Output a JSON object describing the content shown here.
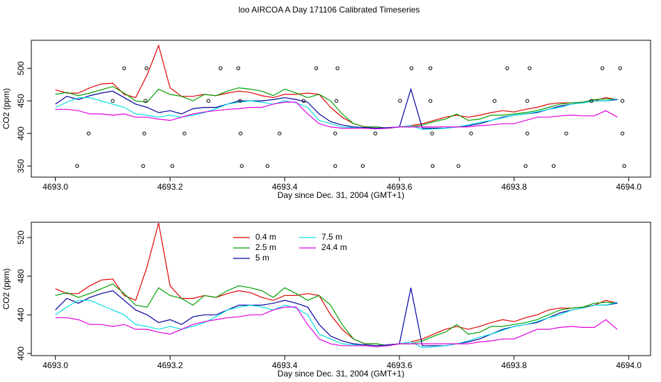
{
  "title": "loo AIRCOA A  Day 171106  Calibrated Timeseries",
  "chart_data": [
    {
      "type": "line",
      "xlabel": "Day since Dec. 31, 2004 (GMT+1)",
      "ylabel": "CO2 (ppm)",
      "xlim": [
        4692.958,
        4694.038
      ],
      "ylim": [
        333,
        543
      ],
      "xticks": [
        {
          "value": 4693.0,
          "label": "4693.0"
        },
        {
          "value": 4693.2,
          "label": "4693.2"
        },
        {
          "value": 4693.4,
          "label": "4693.4"
        },
        {
          "value": 4693.6,
          "label": "4693.6"
        },
        {
          "value": 4693.8,
          "label": "4693.8"
        },
        {
          "value": 4694.0,
          "label": "4694.0"
        }
      ],
      "yticks": [
        350,
        400,
        450,
        500
      ],
      "x": [
        4693.0,
        4693.02,
        4693.04,
        4693.06,
        4693.08,
        4693.1,
        4693.12,
        4693.14,
        4693.16,
        4693.18,
        4693.2,
        4693.22,
        4693.24,
        4693.26,
        4693.28,
        4693.3,
        4693.32,
        4693.34,
        4693.36,
        4693.38,
        4693.4,
        4693.42,
        4693.44,
        4693.46,
        4693.48,
        4693.5,
        4693.52,
        4693.54,
        4693.56,
        4693.58,
        4693.6,
        4693.62,
        4693.64,
        4693.66,
        4693.68,
        4693.7,
        4693.72,
        4693.74,
        4693.76,
        4693.78,
        4693.8,
        4693.82,
        4693.84,
        4693.86,
        4693.88,
        4693.9,
        4693.92,
        4693.94,
        4693.96,
        4693.98
      ],
      "series": [
        {
          "name": "0.4 m",
          "color": "#e00000",
          "values": [
            467,
            462,
            462,
            470,
            476,
            477,
            460,
            455,
            490,
            535,
            470,
            457,
            457,
            460,
            458,
            462,
            465,
            463,
            458,
            455,
            460,
            460,
            462,
            460,
            440,
            425,
            415,
            410,
            410,
            408,
            410,
            412,
            415,
            420,
            425,
            428,
            425,
            428,
            432,
            435,
            433,
            437,
            440,
            445,
            447,
            447,
            448,
            450,
            455,
            452
          ]
        },
        {
          "name": "2.5 m",
          "color": "#00a000",
          "values": [
            460,
            463,
            458,
            462,
            467,
            472,
            462,
            450,
            448,
            468,
            460,
            457,
            450,
            460,
            458,
            465,
            470,
            468,
            465,
            458,
            468,
            462,
            455,
            460,
            450,
            430,
            415,
            410,
            410,
            408,
            410,
            410,
            413,
            418,
            422,
            430,
            420,
            422,
            428,
            428,
            430,
            432,
            435,
            440,
            445,
            447,
            448,
            452,
            453,
            452
          ]
        },
        {
          "name": "5 m",
          "color": "#0000a0",
          "values": [
            445,
            457,
            452,
            458,
            462,
            465,
            455,
            445,
            440,
            432,
            435,
            430,
            438,
            440,
            440,
            445,
            450,
            450,
            450,
            452,
            455,
            452,
            448,
            430,
            418,
            413,
            410,
            409,
            408,
            409,
            410,
            468,
            408,
            408,
            408,
            410,
            412,
            415,
            420,
            425,
            428,
            430,
            432,
            437,
            442,
            445,
            447,
            450,
            450,
            452
          ]
        },
        {
          "name": "7.5 m",
          "color": "#00e0e0",
          "values": [
            440,
            448,
            455,
            455,
            450,
            445,
            440,
            430,
            428,
            425,
            428,
            425,
            428,
            432,
            438,
            445,
            448,
            450,
            448,
            445,
            450,
            447,
            440,
            420,
            415,
            410,
            409,
            408,
            407,
            408,
            410,
            412,
            406,
            407,
            408,
            410,
            413,
            417,
            420,
            424,
            428,
            430,
            433,
            437,
            440,
            445,
            447,
            450,
            450,
            453
          ]
        },
        {
          "name": "24.4 m",
          "color": "#e000e0",
          "values": [
            437,
            437,
            435,
            430,
            430,
            428,
            430,
            425,
            425,
            422,
            420,
            425,
            430,
            433,
            435,
            437,
            438,
            440,
            440,
            445,
            448,
            448,
            430,
            415,
            410,
            408,
            408,
            408,
            407,
            408,
            410,
            410,
            410,
            410,
            410,
            410,
            410,
            412,
            413,
            415,
            415,
            420,
            425,
            425,
            427,
            428,
            427,
            427,
            435,
            425
          ]
        }
      ],
      "markers": {
        "color": "#000000",
        "x": [
          4693.12,
          4693.159,
          4693.288,
          4693.319,
          4693.455,
          4693.492,
          4693.621,
          4693.654,
          4693.788,
          4693.827,
          4693.954,
          4693.985,
          4693.1,
          4693.157,
          4693.267,
          4693.322,
          4693.433,
          4693.49,
          4693.601,
          4693.654,
          4693.766,
          4693.823,
          4693.935,
          4693.989,
          4693.058,
          4693.155,
          4693.225,
          4693.323,
          4693.391,
          4693.488,
          4693.558,
          4693.657,
          4693.725,
          4693.823,
          4693.891,
          4693.989,
          4693.038,
          4693.153,
          4693.204,
          4693.325,
          4693.37,
          4693.488,
          4693.536,
          4693.658,
          4693.703,
          4693.82,
          4693.869,
          4693.992
        ],
        "y": [
          500,
          500,
          500,
          500,
          500,
          500,
          500,
          500,
          500,
          500,
          500,
          500,
          450,
          450,
          450,
          450,
          450,
          450,
          450,
          450,
          450,
          450,
          450,
          450,
          400,
          400,
          400,
          400,
          400,
          400,
          400,
          400,
          400,
          400,
          400,
          400,
          350,
          350,
          350,
          350,
          350,
          350,
          350,
          350,
          350,
          350,
          350,
          350
        ]
      }
    },
    {
      "type": "line",
      "xlabel": "Day since Dec. 31, 2004 (GMT+1)",
      "ylabel": "CO2 (ppm)",
      "xlim": [
        4692.958,
        4694.038
      ],
      "ylim": [
        397.8,
        535.8
      ],
      "xticks": [
        {
          "value": 4693.0,
          "label": "4693.0"
        },
        {
          "value": 4693.2,
          "label": "4693.2"
        },
        {
          "value": 4693.4,
          "label": "4693.4"
        },
        {
          "value": 4693.6,
          "label": "4693.6"
        },
        {
          "value": 4693.8,
          "label": "4693.8"
        },
        {
          "value": 4694.0,
          "label": "4694.0"
        }
      ],
      "yticks": [
        400,
        440,
        480,
        520
      ],
      "legend": "top",
      "x": [
        4693.0,
        4693.02,
        4693.04,
        4693.06,
        4693.08,
        4693.1,
        4693.12,
        4693.14,
        4693.16,
        4693.18,
        4693.2,
        4693.22,
        4693.24,
        4693.26,
        4693.28,
        4693.3,
        4693.32,
        4693.34,
        4693.36,
        4693.38,
        4693.4,
        4693.42,
        4693.44,
        4693.46,
        4693.48,
        4693.5,
        4693.52,
        4693.54,
        4693.56,
        4693.58,
        4693.6,
        4693.62,
        4693.64,
        4693.66,
        4693.68,
        4693.7,
        4693.72,
        4693.74,
        4693.76,
        4693.78,
        4693.8,
        4693.82,
        4693.84,
        4693.86,
        4693.88,
        4693.9,
        4693.92,
        4693.94,
        4693.96,
        4693.98
      ],
      "series": [
        {
          "name": "0.4 m",
          "color": "#e00000",
          "values": [
            467,
            462,
            462,
            470,
            476,
            477,
            460,
            455,
            490,
            535,
            470,
            457,
            457,
            460,
            458,
            462,
            465,
            463,
            458,
            455,
            460,
            460,
            462,
            460,
            440,
            425,
            415,
            410,
            410,
            408,
            410,
            412,
            415,
            420,
            425,
            428,
            425,
            428,
            432,
            435,
            433,
            437,
            440,
            445,
            447,
            447,
            448,
            450,
            455,
            452
          ]
        },
        {
          "name": "2.5 m",
          "color": "#00a000",
          "values": [
            460,
            463,
            458,
            462,
            467,
            472,
            462,
            450,
            448,
            468,
            460,
            457,
            450,
            460,
            458,
            465,
            470,
            468,
            465,
            458,
            468,
            462,
            455,
            460,
            450,
            430,
            415,
            410,
            410,
            408,
            410,
            410,
            413,
            418,
            422,
            430,
            420,
            422,
            428,
            428,
            430,
            432,
            435,
            440,
            445,
            447,
            448,
            452,
            453,
            452
          ]
        },
        {
          "name": "5 m",
          "color": "#0000a0",
          "values": [
            445,
            457,
            452,
            458,
            462,
            465,
            455,
            445,
            440,
            432,
            435,
            430,
            438,
            440,
            440,
            445,
            450,
            450,
            450,
            452,
            455,
            452,
            448,
            430,
            418,
            413,
            410,
            409,
            408,
            409,
            410,
            468,
            408,
            408,
            408,
            410,
            412,
            415,
            420,
            425,
            428,
            430,
            432,
            437,
            442,
            445,
            447,
            450,
            450,
            452
          ]
        },
        {
          "name": "7.5 m",
          "color": "#00e0e0",
          "values": [
            440,
            448,
            455,
            455,
            450,
            445,
            440,
            430,
            428,
            425,
            428,
            425,
            428,
            432,
            438,
            445,
            448,
            450,
            448,
            445,
            450,
            447,
            440,
            420,
            415,
            410,
            409,
            408,
            407,
            408,
            410,
            412,
            406,
            407,
            408,
            410,
            413,
            417,
            420,
            424,
            428,
            430,
            433,
            437,
            440,
            445,
            447,
            450,
            450,
            453
          ]
        },
        {
          "name": "24.4 m",
          "color": "#e000e0",
          "values": [
            437,
            437,
            435,
            430,
            430,
            428,
            430,
            425,
            425,
            422,
            420,
            425,
            430,
            433,
            435,
            437,
            438,
            440,
            440,
            445,
            448,
            448,
            430,
            415,
            410,
            408,
            408,
            408,
            407,
            408,
            410,
            410,
            410,
            410,
            410,
            410,
            410,
            412,
            413,
            415,
            415,
            420,
            425,
            425,
            427,
            428,
            427,
            427,
            435,
            425
          ]
        }
      ]
    }
  ]
}
